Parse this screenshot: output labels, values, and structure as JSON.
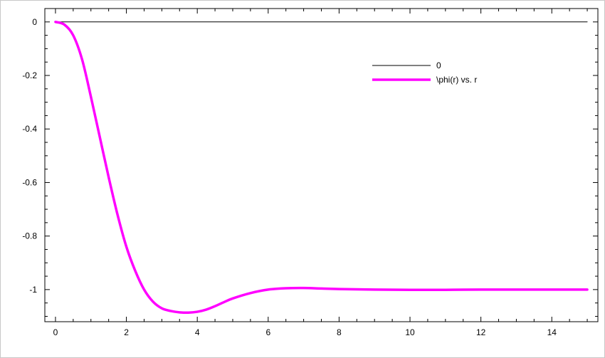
{
  "chart_data": {
    "type": "line",
    "title": "",
    "xlabel": "",
    "ylabel": "",
    "xlim": [
      -0.3,
      15.3
    ],
    "ylim": [
      -1.12,
      0.05
    ],
    "x_ticks": [
      0,
      2,
      4,
      6,
      8,
      10,
      12,
      14
    ],
    "x_tick_labels": [
      "0",
      "2",
      "4",
      "6",
      "8",
      "10",
      "12",
      "14"
    ],
    "y_ticks": [
      0,
      -0.2,
      -0.4,
      -0.6,
      -0.8,
      -1
    ],
    "y_tick_labels": [
      "0",
      "-0.2",
      "-0.4",
      "-0.6",
      "-0.8",
      "-1"
    ],
    "grid": false,
    "legend_position": "top-right",
    "series": [
      {
        "name": "0",
        "color": "#000000",
        "x": [
          0,
          15
        ],
        "y": [
          0,
          0
        ]
      },
      {
        "name": "\\phi(r) vs. r",
        "color": "#ff00ff",
        "x": [
          0,
          0.25,
          0.5,
          0.75,
          1.0,
          1.25,
          1.5,
          1.75,
          2.0,
          2.25,
          2.5,
          2.75,
          3.0,
          3.25,
          3.5,
          3.75,
          4.0,
          4.25,
          4.5,
          4.75,
          5.0,
          5.5,
          6.0,
          6.5,
          7.0,
          7.5,
          8.0,
          9.0,
          10.0,
          11.0,
          12.0,
          13.0,
          14.0,
          15.0
        ],
        "y": [
          0,
          -0.01,
          -0.05,
          -0.14,
          -0.28,
          -0.43,
          -0.58,
          -0.72,
          -0.84,
          -0.93,
          -1.0,
          -1.045,
          -1.07,
          -1.08,
          -1.085,
          -1.086,
          -1.083,
          -1.075,
          -1.062,
          -1.047,
          -1.033,
          -1.013,
          -1.0,
          -0.995,
          -0.994,
          -0.996,
          -0.998,
          -1.0,
          -1.001,
          -1.001,
          -1.0,
          -1.0,
          -1.0,
          -1.0
        ]
      }
    ]
  }
}
